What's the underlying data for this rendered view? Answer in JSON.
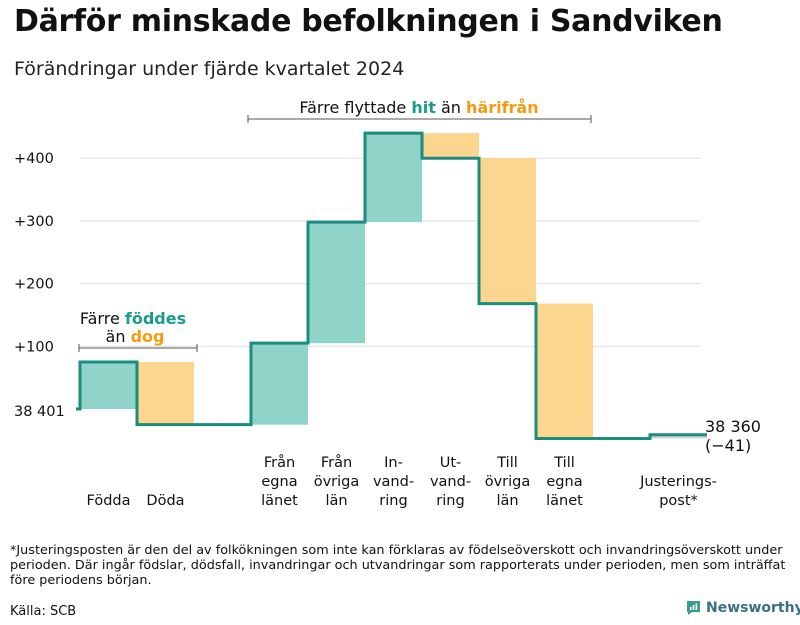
{
  "header": {
    "title": "Därför minskade befolkningen i Sandviken",
    "subtitle": "Förändringar under fjärde kvartalet 2024"
  },
  "colors": {
    "increase_fill": "#8fd3c9",
    "decrease_fill": "#fcd58e",
    "line": "#1a8c80",
    "grid": "#dddddd",
    "increase_text": "#1a9c8b",
    "decrease_text": "#f39c12",
    "adjustment_fill": "#d2d2d2"
  },
  "chart_data": {
    "type": "waterfall",
    "title": "Därför minskade befolkningen i Sandviken",
    "subtitle": "Förändringar under fjärde kvartalet 2024",
    "start_value": 38401,
    "start_label": "38 401",
    "end_value": 38360,
    "end_label": "38 360",
    "end_change_label": "(−41)",
    "yticks": [
      {
        "value": 100,
        "label": "+100"
      },
      {
        "value": 200,
        "label": "+200"
      },
      {
        "value": 300,
        "label": "+300"
      },
      {
        "value": 400,
        "label": "+400"
      }
    ],
    "ylim": [
      -65,
      450
    ],
    "steps": [
      {
        "label": "Födda",
        "lines": [
          "Födda"
        ],
        "change": 75,
        "group": "a"
      },
      {
        "label": "Döda",
        "lines": [
          "Döda"
        ],
        "change": -100,
        "group": "a"
      },
      {
        "label": "Från egna länet",
        "lines": [
          "Från",
          "egna",
          "länet"
        ],
        "change": 130,
        "group": "b"
      },
      {
        "label": "Från övriga län",
        "lines": [
          "Från",
          "övriga",
          "län"
        ],
        "change": 193,
        "group": "b"
      },
      {
        "label": "Invandring",
        "lines": [
          "In-",
          "vand-",
          "ring"
        ],
        "change": 142,
        "group": "b"
      },
      {
        "label": "Utvandring",
        "lines": [
          "Ut-",
          "vand-",
          "ring"
        ],
        "change": -40,
        "group": "b"
      },
      {
        "label": "Till övriga län",
        "lines": [
          "Till",
          "övriga",
          "län"
        ],
        "change": -232,
        "group": "b"
      },
      {
        "label": "Till egna länet",
        "lines": [
          "Till",
          "egna",
          "länet"
        ],
        "change": -215,
        "group": "b"
      },
      {
        "label": "Justeringspost*",
        "lines": [
          "Justerings-",
          "post*"
        ],
        "change": 6,
        "group": "c"
      }
    ],
    "annotations": [
      {
        "id": "births",
        "parts": [
          {
            "text": "Färre ",
            "style": "plain"
          },
          {
            "text": "föddes",
            "style": "inc"
          },
          {
            "text": "än ",
            "style": "plain"
          },
          {
            "text": "dog",
            "style": "dec"
          }
        ]
      },
      {
        "id": "migration",
        "parts": [
          {
            "text": "Färre flyttade ",
            "style": "plain"
          },
          {
            "text": "hit",
            "style": "inc"
          },
          {
            "text": " än ",
            "style": "plain"
          },
          {
            "text": "härifrån",
            "style": "dec"
          }
        ]
      }
    ]
  },
  "footnote": "*Justeringsposten är den del av folkökningen som inte kan förklaras av födelseöverskott och invandringsöverskott under perioden. Där ingår födslar, dödsfall, invandringar och utvandringar som rapporterats under perioden, men som inträffat före periodens början.",
  "source": "Källa: SCB",
  "brand": {
    "name": "Newsworthy",
    "icon": "newsworthy-logo-icon"
  }
}
